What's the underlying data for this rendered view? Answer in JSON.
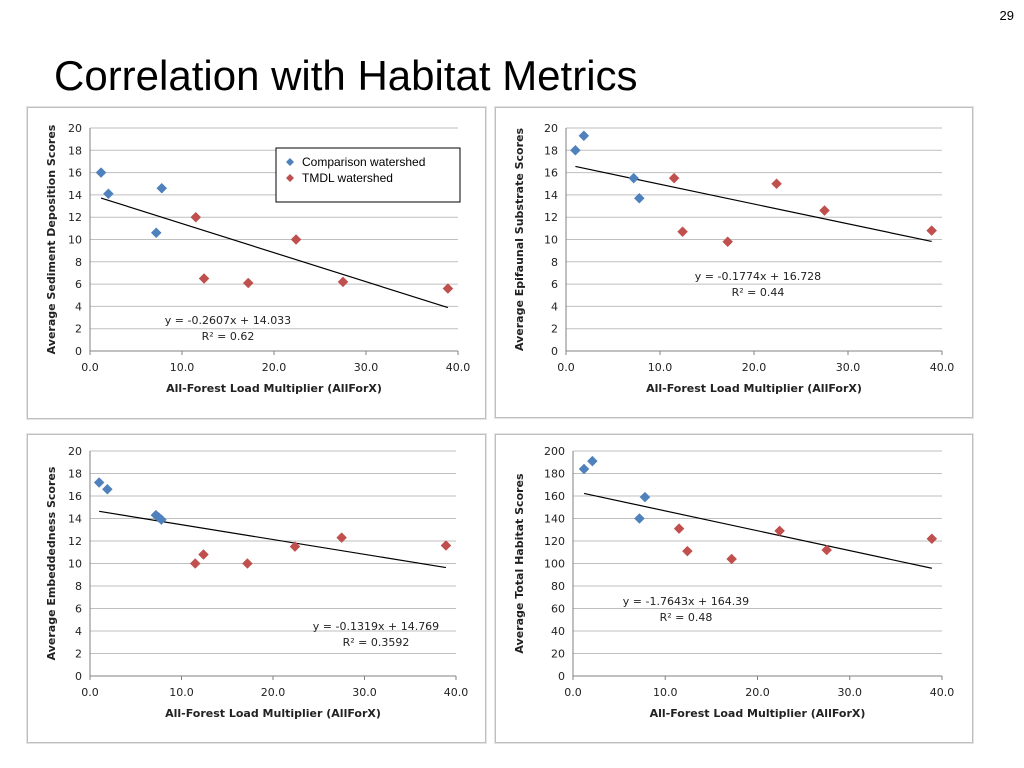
{
  "slide": {
    "page_number": "29",
    "title": "Correlation with Habitat Metrics"
  },
  "colors": {
    "comparison": "#4f81bd",
    "tmdl": "#c0504d",
    "grid": "#bfbfbf",
    "trendline": "#000000"
  },
  "chart_data": [
    {
      "type": "scatter",
      "title": "",
      "xlabel": "All-Forest Load Multiplier (AllForX)",
      "ylabel": "Average Sediment Deposition Scores",
      "xlim": [
        0,
        40
      ],
      "ylim": [
        0,
        20
      ],
      "xticks": [
        "0.0",
        "10.0",
        "20.0",
        "30.0",
        "40.0"
      ],
      "yticks": [
        "0",
        "2",
        "4",
        "6",
        "8",
        "10",
        "12",
        "14",
        "16",
        "18",
        "20"
      ],
      "grid": true,
      "legend": {
        "placement": "top-right",
        "entries": [
          "Comparison watershed",
          "TMDL watershed"
        ]
      },
      "series": [
        {
          "name": "Comparison watershed",
          "marker": "diamond",
          "points": [
            [
              1.2,
              16
            ],
            [
              2.0,
              14.1
            ],
            [
              7.2,
              10.6
            ],
            [
              7.8,
              14.6
            ]
          ]
        },
        {
          "name": "TMDL watershed",
          "marker": "diamond",
          "points": [
            [
              11.5,
              12
            ],
            [
              12.4,
              6.5
            ],
            [
              17.2,
              6.1
            ],
            [
              22.4,
              10
            ],
            [
              27.5,
              6.2
            ],
            [
              38.9,
              5.6
            ]
          ]
        }
      ],
      "trendline": {
        "slope": -0.2607,
        "intercept": 14.033,
        "x_range": [
          1.2,
          38.9
        ]
      },
      "equation": "y = -0.2607x + 14.033",
      "r2": "R² = 0.62"
    },
    {
      "type": "scatter",
      "title": "",
      "xlabel": "All-Forest Load Multiplier (AllForX)",
      "ylabel": "Average Epifaunal Substrate Scores",
      "xlim": [
        0,
        40
      ],
      "ylim": [
        0,
        20
      ],
      "xticks": [
        "0.0",
        "10.0",
        "20.0",
        "30.0",
        "40.0"
      ],
      "yticks": [
        "0",
        "2",
        "4",
        "6",
        "8",
        "10",
        "12",
        "14",
        "16",
        "18",
        "20"
      ],
      "grid": true,
      "series": [
        {
          "name": "Comparison watershed",
          "marker": "diamond",
          "points": [
            [
              1.0,
              18
            ],
            [
              1.9,
              19.3
            ],
            [
              7.2,
              15.5
            ],
            [
              7.8,
              13.7
            ]
          ]
        },
        {
          "name": "TMDL watershed",
          "marker": "diamond",
          "points": [
            [
              11.5,
              15.5
            ],
            [
              12.4,
              10.7
            ],
            [
              17.2,
              9.8
            ],
            [
              22.4,
              15
            ],
            [
              27.5,
              12.6
            ],
            [
              38.9,
              10.8
            ]
          ]
        }
      ],
      "trendline": {
        "slope": -0.1774,
        "intercept": 16.728,
        "x_range": [
          1.0,
          38.9
        ]
      },
      "equation": "y = -0.1774x + 16.728",
      "r2": "R² = 0.44"
    },
    {
      "type": "scatter",
      "title": "",
      "xlabel": "All-Forest Load Multiplier (AllForX)",
      "ylabel": "Average Embeddedness Scores",
      "xlim": [
        0,
        40
      ],
      "ylim": [
        0,
        20
      ],
      "xticks": [
        "0.0",
        "10.0",
        "20.0",
        "30.0",
        "40.0"
      ],
      "yticks": [
        "0",
        "2",
        "4",
        "6",
        "8",
        "10",
        "12",
        "14",
        "16",
        "18",
        "20"
      ],
      "grid": true,
      "series": [
        {
          "name": "Comparison watershed",
          "marker": "diamond",
          "points": [
            [
              1.0,
              17.2
            ],
            [
              1.9,
              16.6
            ],
            [
              7.2,
              14.3
            ],
            [
              7.5,
              14.1
            ],
            [
              7.8,
              13.9
            ]
          ]
        },
        {
          "name": "TMDL watershed",
          "marker": "diamond",
          "points": [
            [
              11.5,
              10
            ],
            [
              12.4,
              10.8
            ],
            [
              17.2,
              10
            ],
            [
              22.4,
              11.5
            ],
            [
              27.5,
              12.3
            ],
            [
              38.9,
              11.6
            ]
          ]
        }
      ],
      "trendline": {
        "slope": -0.1319,
        "intercept": 14.769,
        "x_range": [
          1.0,
          38.9
        ]
      },
      "equation": "y = -0.1319x + 14.769",
      "r2": "R² = 0.3592"
    },
    {
      "type": "scatter",
      "title": "",
      "xlabel": "All-Forest Load Multiplier (AllForX)",
      "ylabel": "Average Total Habitat Scores",
      "xlim": [
        0,
        40
      ],
      "ylim": [
        0,
        200
      ],
      "xticks": [
        "0.0",
        "10.0",
        "20.0",
        "30.0",
        "40.0"
      ],
      "yticks": [
        "0",
        "20",
        "40",
        "60",
        "80",
        "100",
        "120",
        "140",
        "160",
        "180",
        "200"
      ],
      "grid": true,
      "series": [
        {
          "name": "Comparison watershed",
          "marker": "diamond",
          "points": [
            [
              1.2,
              184
            ],
            [
              2.1,
              191
            ],
            [
              7.2,
              140
            ],
            [
              7.8,
              159
            ]
          ]
        },
        {
          "name": "TMDL watershed",
          "marker": "diamond",
          "points": [
            [
              11.5,
              131
            ],
            [
              12.4,
              111
            ],
            [
              17.2,
              104
            ],
            [
              22.4,
              129
            ],
            [
              27.5,
              112
            ],
            [
              38.9,
              122
            ]
          ]
        }
      ],
      "trendline": {
        "slope": -1.7643,
        "intercept": 164.39,
        "x_range": [
          1.2,
          38.9
        ]
      },
      "equation": "y = -1.7643x + 164.39",
      "r2": "R² = 0.48"
    }
  ]
}
